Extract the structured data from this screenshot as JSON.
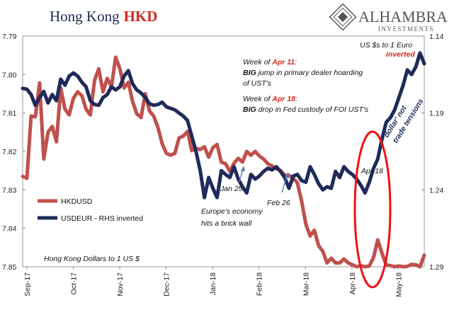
{
  "title": {
    "main": "Hong Kong",
    "accent": "HKD"
  },
  "logo": {
    "name": "ALHAMBRA",
    "sub": "INVESTMENTS"
  },
  "chart_data": {
    "type": "line",
    "x_ticks": [
      "Sep-17",
      "Oct-17",
      "Nov-17",
      "Dec-17",
      "Jan-18",
      "Feb-18",
      "Mar-18",
      "Apr-18",
      "May-18"
    ],
    "left_axis": {
      "ticks": [
        "7.79",
        "7.80",
        "7.81",
        "7.82",
        "7.83",
        "7.84",
        "7.85"
      ],
      "ylim": [
        7.79,
        7.85
      ],
      "inverted": true
    },
    "right_axis": {
      "ticks": [
        "1.14",
        "1.19",
        "1.24",
        "1.29"
      ],
      "ylim": [
        1.14,
        1.29
      ],
      "inverted": true,
      "label_top": "US $s to 1 Euro",
      "label_top_accent": "inverted"
    },
    "series": [
      {
        "name": "HKDUSD",
        "color": "#c0504d",
        "axis": "left",
        "values": [
          7.8265,
          7.827,
          7.8108,
          7.811,
          7.8022,
          7.822,
          7.815,
          7.8135,
          7.8175,
          7.8035,
          7.809,
          7.8105,
          7.8062,
          7.8045,
          7.8055,
          7.809,
          7.8105,
          7.8015,
          7.7985,
          7.8045,
          7.801,
          7.8032,
          7.7955,
          7.7985,
          7.8035,
          7.802,
          7.807,
          7.8102,
          7.8112,
          7.805,
          7.8095,
          7.8108,
          7.8138,
          7.818,
          7.8205,
          7.821,
          7.8205,
          7.8165,
          7.816,
          7.8148,
          7.8198,
          7.8192,
          7.8195,
          7.8188,
          7.8215,
          7.819,
          7.8182,
          7.8228,
          7.8232,
          7.8252,
          7.8231,
          7.8218,
          7.8228,
          7.82,
          7.821,
          7.82,
          7.8212,
          7.822,
          7.8232,
          7.8238,
          7.8245,
          7.825,
          7.8262,
          7.8262,
          7.827,
          7.8282,
          7.833,
          7.839,
          7.842,
          7.8405,
          7.8445,
          7.846,
          7.849,
          7.8478,
          7.849,
          7.849,
          7.848,
          7.849,
          7.8495,
          7.85,
          7.8497,
          7.85,
          7.8498,
          7.8476,
          7.843,
          7.8465,
          7.8495,
          7.8497,
          7.85,
          7.8498,
          7.85,
          7.8499,
          7.8494,
          7.8495,
          7.85,
          7.847
        ]
      },
      {
        "name": "USDEUR - RHS inverted",
        "color": "#1f2a5a",
        "axis": "right",
        "values": [
          1.174,
          1.1745,
          1.178,
          1.185,
          1.18,
          1.176,
          1.1835,
          1.178,
          1.182,
          1.168,
          1.172,
          1.166,
          1.164,
          1.166,
          1.17,
          1.173,
          1.182,
          1.1845,
          1.185,
          1.18,
          1.178,
          1.173,
          1.175,
          1.173,
          1.166,
          1.1625,
          1.171,
          1.175,
          1.177,
          1.18,
          1.184,
          1.185,
          1.1845,
          1.183,
          1.186,
          1.187,
          1.188,
          1.19,
          1.192,
          1.195,
          1.205,
          1.215,
          1.2275,
          1.245,
          1.232,
          1.239,
          1.245,
          1.2275,
          1.23,
          1.232,
          1.225,
          1.233,
          1.238,
          1.242,
          1.23,
          1.233,
          1.231,
          1.228,
          1.226,
          1.227,
          1.225,
          1.228,
          1.232,
          1.239,
          1.231,
          1.23,
          1.234,
          1.235,
          1.225,
          1.23,
          1.236,
          1.24,
          1.238,
          1.239,
          1.228,
          1.232,
          1.225,
          1.228,
          1.23,
          1.233,
          1.237,
          1.242,
          1.235,
          1.226,
          1.22,
          1.207,
          1.196,
          1.193,
          1.188,
          1.18,
          1.172,
          1.162,
          1.165,
          1.16,
          1.151,
          1.158
        ]
      }
    ],
    "annotations": {
      "apr11_line1_a": "Week of ",
      "apr11_line1_b": "Apr 11",
      "apr11_line1_c": ":",
      "apr11_line2_a": "BIG",
      "apr11_line2_b": " jump in primary dealer hoarding",
      "apr11_line3": "of UST's",
      "apr18_line1_a": "Week of ",
      "apr18_line1_b": "Apr 18",
      "apr18_line1_c": ":",
      "apr18_line2_a": "BIG",
      "apr18_line2_b": " drop in Fed custody of FOI UST's",
      "dollar_1": "'dollar' not",
      "dollar_2": "trade tensions",
      "apr18_marker": "Apr 18",
      "jan25_1": "Jan 25",
      "jan25_2": "Europe's economy",
      "jan25_3": "hits a brick wall",
      "feb26": "Feb 26",
      "hk_dollars": "Hong Kong Dollars to 1 US $"
    },
    "legend": [
      {
        "label": "HKDUSD",
        "color": "#c0504d"
      },
      {
        "label": "USDEUR - RHS inverted",
        "color": "#1f2a5a"
      }
    ]
  }
}
